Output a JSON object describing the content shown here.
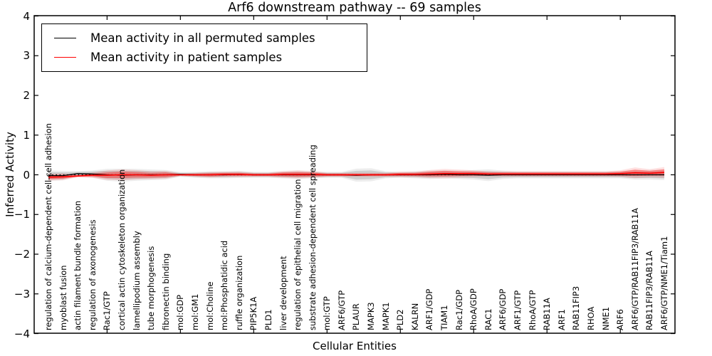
{
  "chart_data": {
    "type": "line",
    "title": "Arf6 downstream pathway -- 69 samples",
    "xlabel": "Cellular Entities",
    "ylabel": "Inferred Activity",
    "ylim": [
      -4,
      4
    ],
    "yticks": [
      {
        "label": "4",
        "value": 4
      },
      {
        "label": "3",
        "value": 3
      },
      {
        "label": "2",
        "value": 2
      },
      {
        "label": "1",
        "value": 1
      },
      {
        "label": "0",
        "value": 0
      },
      {
        "label": "−1",
        "value": -1
      },
      {
        "label": "−2",
        "value": -2
      },
      {
        "label": "−3",
        "value": -3
      },
      {
        "label": "−4",
        "value": -4
      }
    ],
    "x_major_ticks": [
      5,
      10,
      15,
      20,
      25,
      30,
      35,
      40
    ],
    "grid": false,
    "legend_position": "upper left",
    "zero_line": {
      "y": 0,
      "style": "dotted",
      "color": "#000000"
    },
    "categories": [
      "regulation of calcium-dependent cell-cell adhesion",
      "myoblast fusion",
      "actin filament bundle formation",
      "regulation of axonogenesis",
      "Rac1/GTP",
      "cortical actin cytoskeleton organization",
      "lamellipodium assembly",
      "tube morphogenesis",
      "fibronectin binding",
      "mol:GDP",
      "mol:GM1",
      "mol:Choline",
      "mol:Phosphatidic acid",
      "ruffle organization",
      "PIP5K1A",
      "PLD1",
      "liver development",
      "regulation of epithelial cell migration",
      "substrate adhesion-dependent cell spreading",
      "mol:GTP",
      "ARF6/GTP",
      "PLAUR",
      "MAPK3",
      "MAPK1",
      "PLD2",
      "KALRN",
      "ARF1/GDP",
      "TIAM1",
      "Rac1/GDP",
      "RhoA/GDP",
      "RAC1",
      "ARF6/GDP",
      "ARF1/GTP",
      "RhoA/GTP",
      "RAB11A",
      "ARF1",
      "RAB11FIP3",
      "RHOA",
      "NME1",
      "ARF6",
      "ARF6/GTP/RAB11FIP3/RAB11A",
      "RAB11FIP3/RAB11A",
      "ARF6/GTP/NME1/Tiam1"
    ],
    "series": [
      {
        "name": "Mean activity in all permuted samples",
        "color": "#000000",
        "style": "solid",
        "band_color": "rgba(0,0,0,0.13)",
        "band_outer_color": "rgba(0,0,0,0.07)",
        "values": [
          -0.02,
          -0.02,
          0.03,
          0.02,
          0,
          -0.01,
          0,
          0,
          0,
          0.01,
          0,
          0,
          0,
          0.01,
          0,
          0,
          0,
          0,
          0,
          0,
          0,
          -0.01,
          0,
          0,
          0,
          0,
          0,
          0.01,
          0,
          0,
          -0.01,
          0,
          0,
          0,
          0,
          0,
          0,
          0,
          0,
          0,
          0,
          0,
          0
        ],
        "band_halfwidth": [
          0.09,
          0.08,
          0.04,
          0.06,
          0.1,
          0.11,
          0.1,
          0.09,
          0.08,
          0.04,
          0.05,
          0.06,
          0.06,
          0.06,
          0.05,
          0.05,
          0.06,
          0.07,
          0.06,
          0.05,
          0.05,
          0.11,
          0.11,
          0.06,
          0.05,
          0.06,
          0.07,
          0.07,
          0.07,
          0.08,
          0.1,
          0.07,
          0.06,
          0.06,
          0.06,
          0.06,
          0.06,
          0.06,
          0.06,
          0.06,
          0.08,
          0.08,
          0.09
        ]
      },
      {
        "name": "Mean activity in patient samples",
        "color": "#ff0000",
        "style": "solid",
        "band_color": "rgba(255,0,0,0.35)",
        "band_outer_color": "rgba(255,0,0,0.12)",
        "values": [
          -0.06,
          -0.05,
          -0.03,
          -0.01,
          -0.01,
          0,
          0,
          -0.01,
          0,
          0,
          0,
          0,
          0.01,
          0.01,
          0,
          0,
          0.01,
          0.01,
          0.01,
          0,
          0,
          0,
          0,
          0,
          0.01,
          0.01,
          0.02,
          0.03,
          0.03,
          0.03,
          0.02,
          0.02,
          0.02,
          0.02,
          0.02,
          0.02,
          0.02,
          0.02,
          0.02,
          0.03,
          0.05,
          0.04,
          0.06
        ],
        "band_halfwidth": [
          0.05,
          0.05,
          0.02,
          0.04,
          0.07,
          0.08,
          0.07,
          0.06,
          0.06,
          0.02,
          0.03,
          0.04,
          0.04,
          0.04,
          0.03,
          0.03,
          0.05,
          0.06,
          0.05,
          0.03,
          0.03,
          0.03,
          0.03,
          0.03,
          0.04,
          0.04,
          0.06,
          0.07,
          0.06,
          0.05,
          0.04,
          0.04,
          0.04,
          0.04,
          0.04,
          0.04,
          0.04,
          0.04,
          0.04,
          0.05,
          0.08,
          0.06,
          0.08
        ]
      }
    ]
  }
}
